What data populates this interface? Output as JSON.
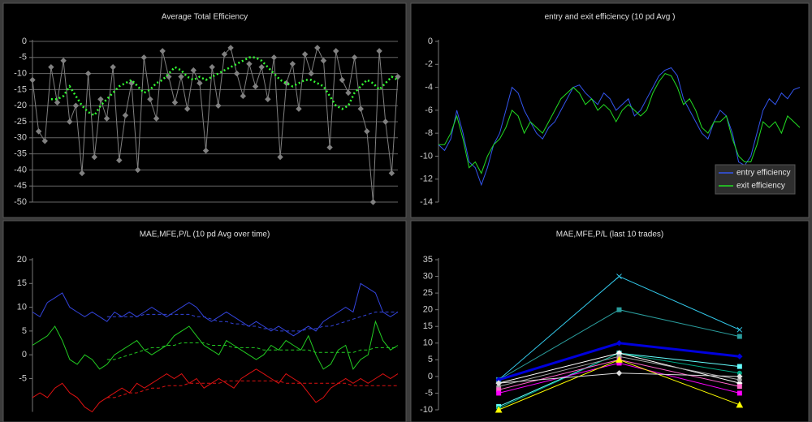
{
  "chart_data": [
    {
      "type": "line",
      "title": "Average Total Efficiency",
      "ylim": [
        -50,
        0
      ],
      "yticks": [
        0,
        -5,
        -10,
        -15,
        -20,
        -25,
        -30,
        -35,
        -40,
        -45,
        -50
      ],
      "grid": true,
      "series": [
        {
          "color": "#808080",
          "marker": "diamond",
          "values": [
            -12,
            -28,
            -31,
            -8,
            -19,
            -6,
            -25,
            -20,
            -41,
            -10,
            -36,
            -18,
            -24,
            -8,
            -37,
            -23,
            -13,
            -40,
            -5,
            -18,
            -24,
            -3,
            -11,
            -19,
            -11,
            -21,
            -9,
            -13,
            -34,
            -8,
            -20,
            -4,
            -2,
            -10,
            -17,
            -7,
            -14,
            -8,
            -18,
            -5,
            -36,
            -13,
            -7,
            -21,
            -4,
            -10,
            -2,
            -6,
            -33,
            -3,
            -12,
            -16,
            -5,
            -21,
            -28,
            -50,
            -3,
            -25,
            -41,
            -11
          ]
        },
        {
          "color": "#33ff33",
          "dash": "dot",
          "values": [
            null,
            null,
            null,
            -18,
            -18,
            -17,
            -14,
            -17,
            -20,
            -22,
            -23,
            -20,
            -18,
            -16,
            -14,
            -13,
            -12,
            -14,
            -16,
            -15,
            -13,
            -12,
            -10,
            -8,
            -9,
            -11,
            -12,
            -11,
            -12,
            -11,
            -10,
            -9,
            -8,
            -7,
            -6,
            -5,
            -5,
            -6,
            -8,
            -10,
            -12,
            -13,
            -14,
            -13,
            -12,
            -12,
            -13,
            -14,
            -17,
            -20,
            -21,
            -20,
            -16,
            -14,
            -12,
            -13,
            -15,
            -13,
            -11,
            -12
          ]
        }
      ]
    },
    {
      "type": "line",
      "title": "entry and exit efficiency (10 pd Avg )",
      "ylim": [
        -14,
        0
      ],
      "yticks": [
        0,
        -2,
        -4,
        -6,
        -8,
        -10,
        -12,
        -14
      ],
      "grid": false,
      "legend": "bottom-right",
      "series": [
        {
          "name": "entry efficiency",
          "color": "#3355ee",
          "values": [
            -9,
            -9.5,
            -8.5,
            -6,
            -8,
            -10.5,
            -11,
            -12.5,
            -11,
            -9,
            -8,
            -6,
            -4,
            -4.5,
            -6,
            -7,
            -8,
            -8.5,
            -7.5,
            -7,
            -6,
            -5,
            -4,
            -3.8,
            -4.5,
            -5,
            -5.5,
            -4.5,
            -5,
            -6,
            -5.5,
            -5,
            -6.5,
            -6,
            -5,
            -4,
            -3,
            -2.5,
            -2.3,
            -3,
            -5,
            -6,
            -7,
            -8,
            -8.5,
            -7,
            -6,
            -6.5,
            -8,
            -10.5,
            -10.8,
            -10,
            -8,
            -6,
            -5,
            -5.5,
            -4.5,
            -5,
            -4.2,
            -4
          ]
        },
        {
          "name": "exit efficiency",
          "color": "#22dd22",
          "values": [
            -9,
            -9,
            -8,
            -6.5,
            -8.5,
            -11,
            -10.5,
            -11.5,
            -10,
            -9,
            -8.5,
            -7.5,
            -6,
            -6.5,
            -8,
            -7,
            -7.5,
            -8,
            -7,
            -6,
            -5,
            -4.5,
            -4,
            -4.5,
            -5.5,
            -5,
            -6,
            -5.5,
            -6,
            -7,
            -6,
            -5.5,
            -6,
            -6.5,
            -6,
            -4.5,
            -3.5,
            -2.8,
            -3,
            -4,
            -5.5,
            -5,
            -6,
            -7.5,
            -8,
            -7,
            -7,
            -6.5,
            -8.5,
            -10,
            -10.5,
            -10.5,
            -9,
            -7,
            -7.5,
            -7,
            -8,
            -6.5,
            -7,
            -7.5
          ]
        }
      ]
    },
    {
      "type": "line",
      "title": "MAE,MFE,P/L (10 pd Avg over time)",
      "ylim": [
        -12,
        20
      ],
      "yticks": [
        20,
        15,
        10,
        5,
        0,
        -5
      ],
      "grid": false,
      "series": [
        {
          "color": "#3344dd",
          "values": [
            9,
            8,
            11,
            12,
            13,
            10,
            9,
            8,
            9,
            8,
            7,
            9,
            8,
            9,
            8,
            9,
            10,
            9,
            8,
            9,
            10,
            11,
            10,
            8,
            7,
            8,
            9,
            8,
            7,
            6,
            7,
            6,
            5,
            6,
            5,
            4,
            5,
            6,
            5,
            7,
            8,
            9,
            10,
            9,
            15,
            14,
            13,
            9,
            8,
            9
          ]
        },
        {
          "color": "#3344dd",
          "dash": "dash",
          "values": [
            null,
            null,
            null,
            null,
            null,
            null,
            null,
            null,
            null,
            null,
            8,
            8,
            8,
            8,
            8,
            8.5,
            8.5,
            8.5,
            8.5,
            8.5,
            8.5,
            8.5,
            8,
            8,
            7.5,
            7,
            7,
            6.5,
            6.5,
            6,
            6,
            5.5,
            5.5,
            5,
            5,
            5,
            5,
            5.5,
            5.5,
            6,
            6,
            6.5,
            7,
            7.5,
            8,
            8.5,
            9,
            9,
            9,
            9
          ]
        },
        {
          "color": "#22cc22",
          "values": [
            2,
            3,
            4,
            6,
            3,
            -1,
            -2,
            0,
            -1,
            -3,
            -2,
            0,
            1,
            2,
            3,
            1,
            0,
            1,
            2,
            4,
            5,
            6,
            4,
            2,
            1,
            0,
            3,
            2,
            1,
            0,
            -1,
            0,
            2,
            1,
            3,
            2,
            1,
            4,
            0,
            -3,
            -2,
            1,
            2,
            -3,
            -1,
            0,
            7,
            3,
            1,
            2
          ]
        },
        {
          "color": "#22cc22",
          "dash": "dash",
          "values": [
            null,
            null,
            null,
            null,
            null,
            null,
            null,
            null,
            null,
            null,
            -1,
            -1,
            -0.5,
            0,
            0.5,
            1,
            1.5,
            1.5,
            2,
            2,
            2.5,
            2.5,
            2.5,
            2.5,
            2,
            2,
            2,
            1.5,
            1.5,
            1.5,
            1.5,
            1,
            1,
            1,
            1,
            1,
            1,
            1,
            0.5,
            0.5,
            0.5,
            0.5,
            0.5,
            0.5,
            1,
            1,
            1.5,
            1.5,
            1.5,
            1.5
          ]
        },
        {
          "color": "#dd1111",
          "values": [
            -9,
            -8,
            -9,
            -7,
            -6,
            -8,
            -9,
            -11,
            -12,
            -10,
            -9,
            -8,
            -7,
            -8,
            -6,
            -7,
            -6,
            -5,
            -4,
            -5,
            -4,
            -6,
            -5,
            -7,
            -6,
            -5,
            -6,
            -7,
            -5,
            -4,
            -3,
            -4,
            -5,
            -6,
            -4,
            -5,
            -6,
            -8,
            -10,
            -9,
            -7,
            -6,
            -5,
            -6,
            -5,
            -6,
            -5,
            -4,
            -5,
            -4
          ]
        },
        {
          "color": "#dd1111",
          "dash": "dash",
          "values": [
            null,
            null,
            null,
            null,
            null,
            null,
            null,
            null,
            null,
            null,
            -9,
            -9,
            -8.5,
            -8,
            -8,
            -7.5,
            -7,
            -7,
            -6.5,
            -6.5,
            -6.5,
            -6,
            -6,
            -6,
            -6,
            -6,
            -5.5,
            -5.5,
            -5.5,
            -5.5,
            -5.5,
            -5.5,
            -5.5,
            -5.5,
            -6,
            -6,
            -6,
            -6,
            -6,
            -6,
            -6,
            -6,
            -6,
            -6.5,
            -6.5,
            -6.5,
            -6.5,
            -6.5,
            -6.5,
            -6.5
          ]
        }
      ]
    },
    {
      "type": "category-line",
      "title": "MAE,MFE,P/L (last 10 trades)",
      "categories": [
        null,
        null,
        null
      ],
      "ylim": [
        -10,
        35
      ],
      "yticks": [
        35,
        30,
        25,
        20,
        15,
        10,
        5,
        0,
        -5,
        -10
      ],
      "grid": false,
      "series": [
        {
          "color": "#33ccee",
          "marker": "cross",
          "values": [
            -1,
            30,
            14
          ]
        },
        {
          "color": "#2a9d9d",
          "marker": "square",
          "values": [
            -1,
            20,
            12
          ]
        },
        {
          "color": "#0000dd",
          "marker": "diamond",
          "width": 3,
          "values": [
            -1,
            10,
            6
          ]
        },
        {
          "color": "#66ffff",
          "marker": "square",
          "values": [
            -9,
            7,
            3
          ]
        },
        {
          "color": "#00aa88",
          "marker": "circle",
          "values": [
            -9.5,
            7,
            1
          ]
        },
        {
          "color": "#ffffff",
          "marker": "diamond",
          "values": [
            -2,
            7,
            -2
          ]
        },
        {
          "color": "#aaaaaa",
          "marker": "circle",
          "values": [
            -3,
            6,
            -1
          ]
        },
        {
          "color": "#ff66cc",
          "marker": "square",
          "values": [
            -4,
            5,
            -3
          ]
        },
        {
          "color": "#ff00ff",
          "marker": "square",
          "values": [
            -5,
            4,
            -5
          ]
        },
        {
          "color": "#ffff00",
          "marker": "triangle",
          "values": [
            -10,
            5,
            -8.5
          ]
        },
        {
          "color": "#dddddd",
          "marker": "diamond",
          "values": [
            -2,
            1,
            0
          ]
        }
      ]
    }
  ]
}
